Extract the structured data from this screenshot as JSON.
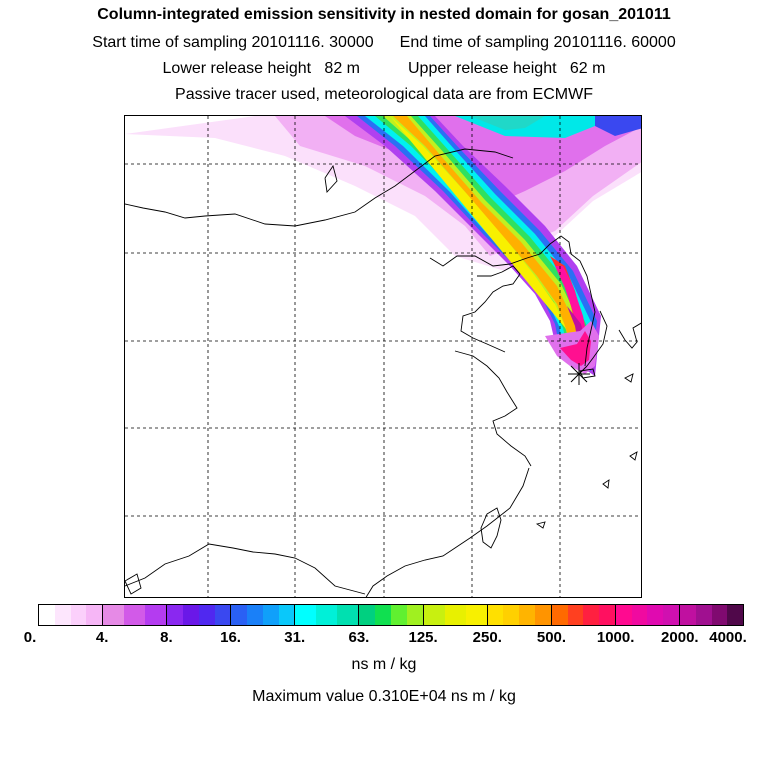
{
  "title": "Column-integrated emission sensitivity in nested domain for gosan_201011",
  "sampling": {
    "start_label": "Start time of sampling",
    "start_value": "20101116. 30000",
    "end_label": "End time of sampling",
    "end_value": "20101116. 60000"
  },
  "release": {
    "lower_label": "Lower release height",
    "lower_value": "82 m",
    "upper_label": "Upper release height",
    "upper_value": "62 m"
  },
  "subtitle": "Passive tracer used, meteorological data are from ECMWF",
  "colorbar": {
    "tick_labels": [
      "0.",
      "4.",
      "8.",
      "16.",
      "31.",
      "63.",
      "125.",
      "250.",
      "500.",
      "1000.",
      "2000.",
      "4000."
    ],
    "segment_colors": [
      [
        "#ffffff",
        "#fde6fd",
        "#fbd0fb",
        "#f6b6f6"
      ],
      [
        "#e68ae6",
        "#d25ae8",
        "#b43cf0"
      ],
      [
        "#8a28f0",
        "#6a18e8",
        "#5028f0",
        "#3a48f0"
      ],
      [
        "#2a60f4",
        "#1a80f8",
        "#10a0fa",
        "#0ac8fa"
      ],
      [
        "#00ffff",
        "#00f0d8",
        "#00e0b0"
      ],
      [
        "#00d080",
        "#10e050",
        "#60f030",
        "#a0f020"
      ],
      [
        "#c8f010",
        "#e8f000",
        "#f8f000"
      ],
      [
        "#ffe000",
        "#ffd000",
        "#ffb400",
        "#ff9400"
      ],
      [
        "#ff6a00",
        "#ff4020",
        "#ff2040",
        "#ff1060"
      ],
      [
        "#ff0a90",
        "#f00aa0",
        "#e00ab0",
        "#d010b0"
      ],
      [
        "#c010a0",
        "#a01090",
        "#800a70",
        "#50084a"
      ]
    ],
    "unit": "ns m / kg"
  },
  "max_value_label": "Maximum value  0.310E+04 ns m / kg",
  "map": {
    "receptor_marker": "star-marker",
    "gridline_color": "#000000"
  }
}
